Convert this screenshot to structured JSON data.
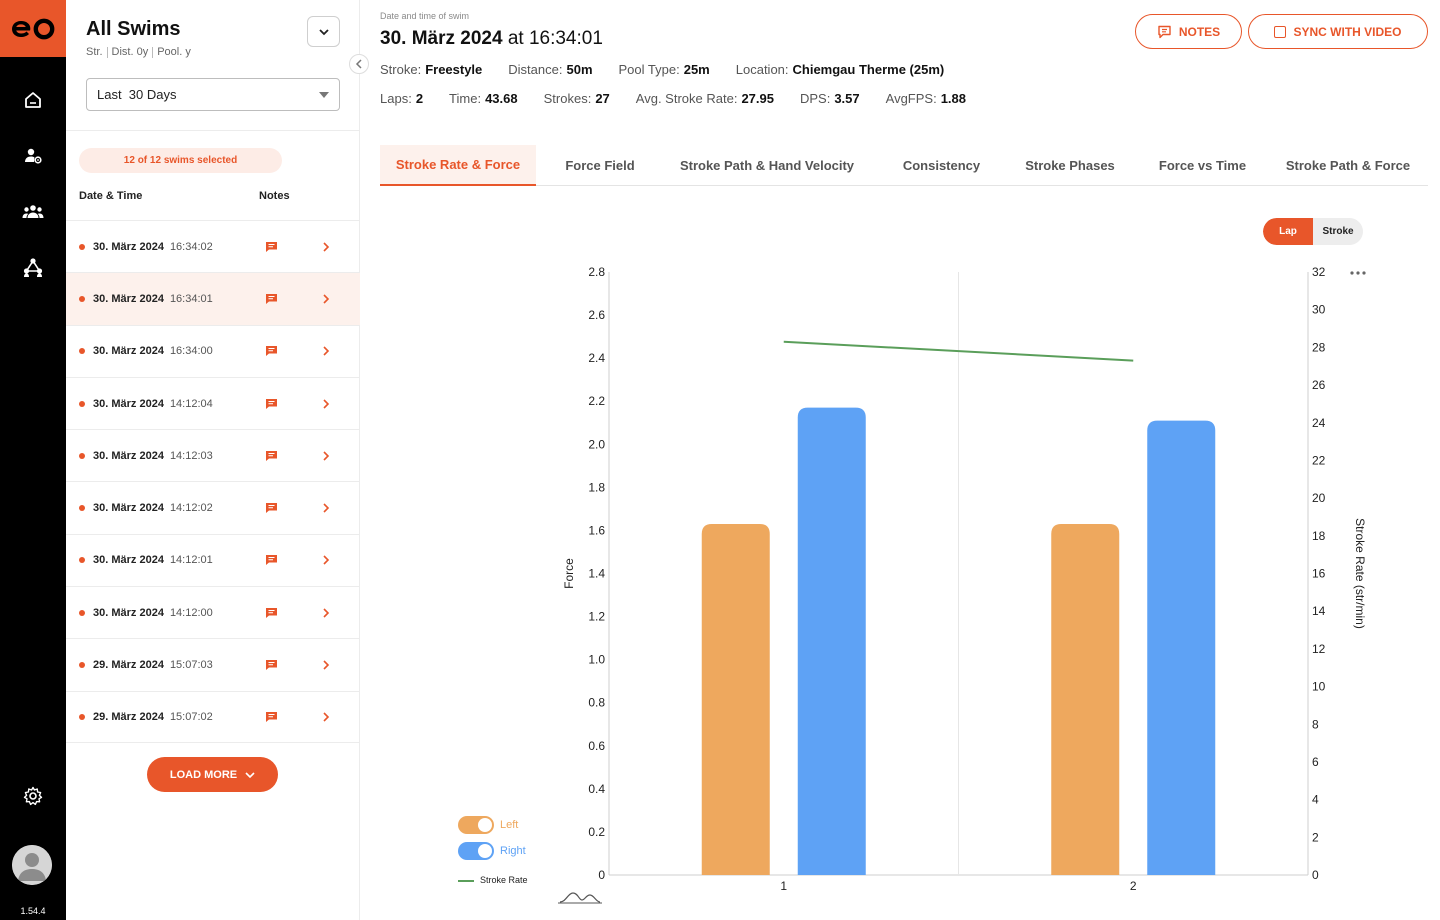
{
  "app": {
    "version": "1.54.4",
    "logo_text": "eo",
    "colors": {
      "accent": "#e8562a",
      "left": "#eea85e",
      "right": "#5ea2f5",
      "stroke_rate": "#5a9e5a"
    }
  },
  "nav": {
    "items": [
      {
        "name": "home-icon"
      },
      {
        "name": "user-settings-icon"
      },
      {
        "name": "team-icon"
      },
      {
        "name": "network-icon"
      }
    ],
    "bottom": {
      "settings": "gear-icon",
      "avatar": "avatar-icon"
    }
  },
  "sidebar": {
    "title": "All Swims",
    "meta": [
      "Str.",
      "Dist. 0y",
      "Pool. y"
    ],
    "period": "Last  30 Days",
    "selected_badge": "12 of 12 swims selected",
    "columns": {
      "date": "Date & Time",
      "notes": "Notes"
    },
    "swims": [
      {
        "date": "30. März 2024",
        "time": "16:34:02",
        "selected": false
      },
      {
        "date": "30. März 2024",
        "time": "16:34:01",
        "selected": true
      },
      {
        "date": "30. März 2024",
        "time": "16:34:00",
        "selected": false
      },
      {
        "date": "30. März 2024",
        "time": "14:12:04",
        "selected": false
      },
      {
        "date": "30. März 2024",
        "time": "14:12:03",
        "selected": false
      },
      {
        "date": "30. März 2024",
        "time": "14:12:02",
        "selected": false
      },
      {
        "date": "30. März 2024",
        "time": "14:12:01",
        "selected": false
      },
      {
        "date": "30. März 2024",
        "time": "14:12:00",
        "selected": false
      },
      {
        "date": "29. März 2024",
        "time": "15:07:03",
        "selected": false
      },
      {
        "date": "29. März 2024",
        "time": "15:07:02",
        "selected": false
      }
    ],
    "load_more": "LOAD MORE"
  },
  "header": {
    "datetime_label": "Date and time of swim",
    "date": "30. März 2024",
    "at": "at",
    "time": "16:34:01",
    "notes_button": "NOTES",
    "sync_button": "SYNC WITH VIDEO"
  },
  "stats_row1": [
    {
      "label": "Stroke:",
      "value": "Freestyle"
    },
    {
      "label": "Distance:",
      "value": "50m"
    },
    {
      "label": "Pool Type:",
      "value": "25m"
    },
    {
      "label": "Location:",
      "value": "Chiemgau Therme (25m)"
    }
  ],
  "stats_row2": [
    {
      "label": "Laps:",
      "value": "2"
    },
    {
      "label": "Time:",
      "value": "43.68"
    },
    {
      "label": "Strokes:",
      "value": "27"
    },
    {
      "label": "Avg. Stroke Rate:",
      "value": "27.95"
    },
    {
      "label": "DPS:",
      "value": "3.57"
    },
    {
      "label": "AvgFPS:",
      "value": "1.88"
    }
  ],
  "tabs": [
    {
      "label": "Stroke Rate & Force",
      "active": true
    },
    {
      "label": "Force Field",
      "active": false
    },
    {
      "label": "Stroke Path & Hand Velocity",
      "active": false
    },
    {
      "label": "Consistency",
      "active": false
    },
    {
      "label": "Stroke Phases",
      "active": false
    },
    {
      "label": "Force vs Time",
      "active": false
    },
    {
      "label": "Stroke Path & Force",
      "active": false
    }
  ],
  "view_toggle": {
    "options": [
      "Lap",
      "Stroke"
    ],
    "selected": "Lap"
  },
  "legend": {
    "left": "Left",
    "right": "Right",
    "stroke_rate": "Stroke Rate"
  },
  "chart_data": {
    "type": "bar",
    "categories": [
      "1",
      "2"
    ],
    "series": [
      {
        "name": "Left",
        "axis": "left",
        "type": "bar",
        "values": [
          1.63,
          1.63
        ]
      },
      {
        "name": "Right",
        "axis": "left",
        "type": "bar",
        "values": [
          2.17,
          2.11
        ]
      },
      {
        "name": "Stroke Rate",
        "axis": "right",
        "type": "line",
        "values": [
          28.3,
          27.3
        ]
      }
    ],
    "ylabel": "Force",
    "ylim": [
      0,
      2.8
    ],
    "yticks": [
      "0",
      "0.2",
      "0.4",
      "0.6",
      "0.8",
      "1.0",
      "1.2",
      "1.4",
      "1.6",
      "1.8",
      "2.0",
      "2.2",
      "2.4",
      "2.6",
      "2.8"
    ],
    "y2label": "Stroke Rate (str/min)",
    "y2lim": [
      0,
      32
    ],
    "y2ticks": [
      "0",
      "2",
      "4",
      "6",
      "8",
      "10",
      "12",
      "14",
      "16",
      "18",
      "20",
      "22",
      "24",
      "26",
      "28",
      "30",
      "32"
    ],
    "grid": false,
    "legend": "bottom-left"
  }
}
